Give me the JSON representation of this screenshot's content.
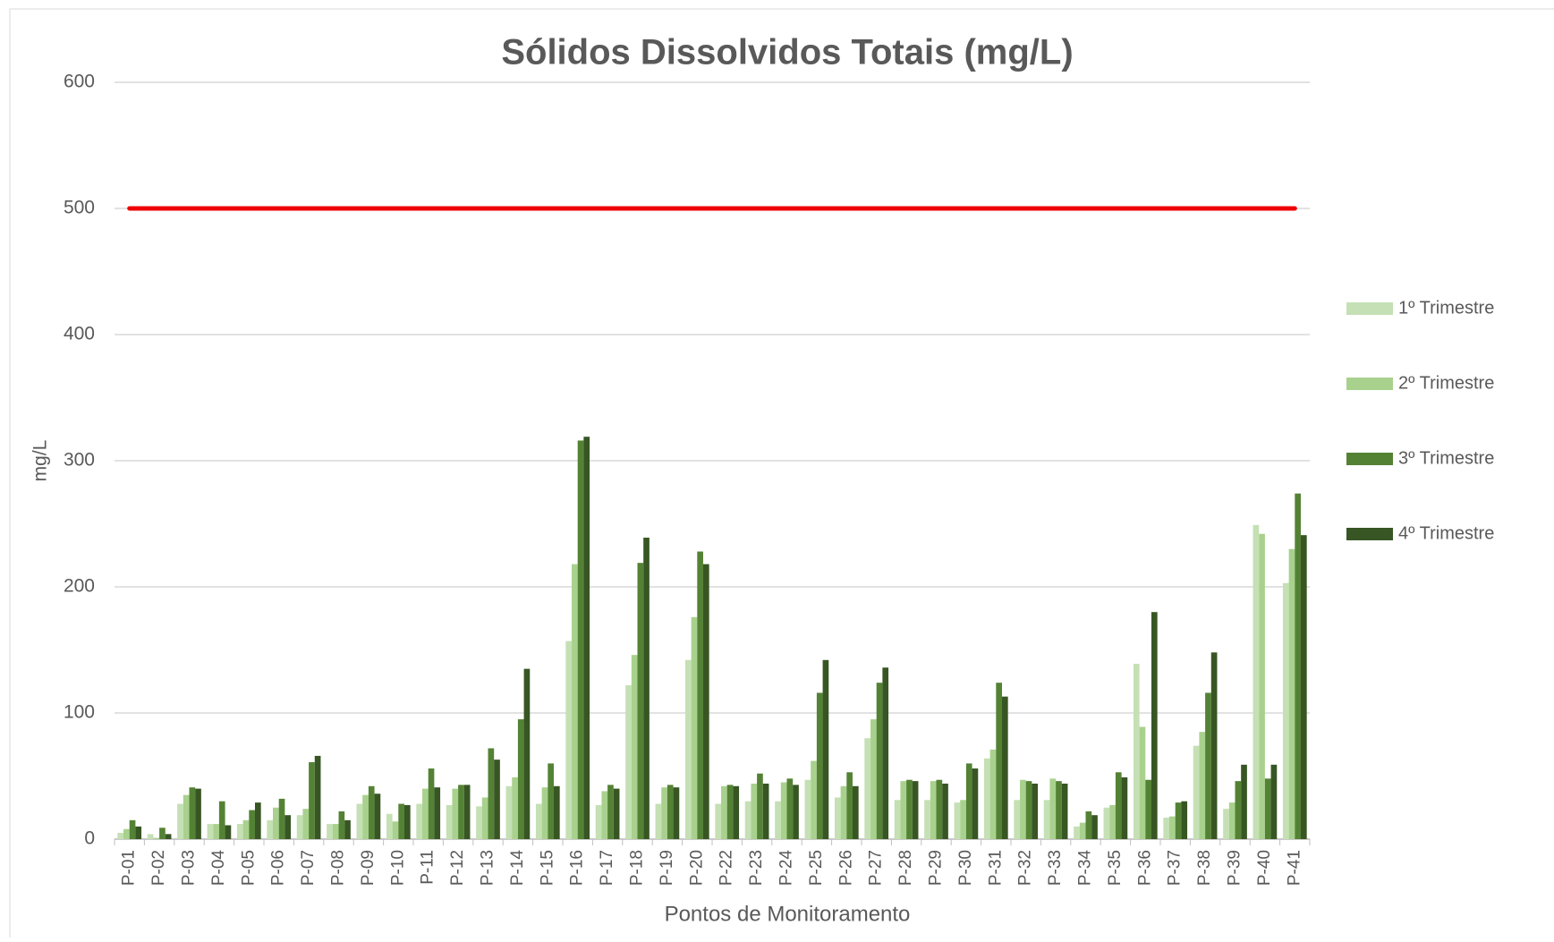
{
  "chart_data": {
    "type": "bar",
    "title": "Sólidos Dissolvidos Totais (mg/L)",
    "x_label": "Pontos de Monitoramento",
    "y_label": "mg/L",
    "categories": [
      "P-01",
      "P-02",
      "P-03",
      "P-04",
      "P-05",
      "P-06",
      "P-07",
      "P-08",
      "P-09",
      "P-10",
      "P-11",
      "P-12",
      "P-13",
      "P-14",
      "P-15",
      "P-16",
      "P-17",
      "P-18",
      "P-19",
      "P-20",
      "P-22",
      "P-23",
      "P-24",
      "P-25",
      "P-26",
      "P-27",
      "P-28",
      "P-29",
      "P-30",
      "P-31",
      "P-32",
      "P-33",
      "P-34",
      "P-35",
      "P-36",
      "P-37",
      "P-38",
      "P-39",
      "P-40",
      "P-41"
    ],
    "series": [
      {
        "name": "1º Trimestre",
        "color": "#c5e0b4",
        "values": [
          5,
          4,
          28,
          12,
          12,
          15,
          19,
          12,
          28,
          20,
          28,
          27,
          26,
          42,
          28,
          157,
          27,
          122,
          28,
          142,
          28,
          30,
          30,
          47,
          33,
          80,
          31,
          31,
          29,
          64,
          31,
          31,
          10,
          25,
          139,
          17,
          74,
          24,
          249,
          203
        ]
      },
      {
        "name": "2º Trimestre",
        "color": "#a9d18e",
        "values": [
          8,
          1,
          35,
          12,
          15,
          25,
          24,
          12,
          35,
          14,
          40,
          40,
          33,
          49,
          41,
          218,
          38,
          146,
          41,
          176,
          42,
          44,
          45,
          62,
          42,
          95,
          46,
          46,
          31,
          71,
          47,
          48,
          13,
          27,
          89,
          18,
          85,
          29,
          242,
          230
        ]
      },
      {
        "name": "3º Trimestre",
        "color": "#548235",
        "values": [
          15,
          9,
          41,
          30,
          23,
          32,
          61,
          22,
          42,
          28,
          56,
          43,
          72,
          95,
          60,
          316,
          43,
          219,
          43,
          228,
          43,
          52,
          48,
          116,
          53,
          124,
          47,
          47,
          60,
          124,
          46,
          46,
          22,
          53,
          47,
          29,
          116,
          46,
          48,
          274
        ]
      },
      {
        "name": "4º Trimestre",
        "color": "#375623",
        "values": [
          10,
          4,
          40,
          11,
          29,
          19,
          66,
          15,
          36,
          27,
          41,
          43,
          63,
          135,
          42,
          319,
          40,
          239,
          41,
          218,
          42,
          44,
          43,
          142,
          42,
          136,
          46,
          44,
          56,
          113,
          44,
          44,
          19,
          49,
          180,
          30,
          148,
          59,
          59,
          241
        ]
      }
    ],
    "reference_line": {
      "value": 500,
      "color": "#ee0000"
    },
    "ylim": [
      0,
      600
    ],
    "yticks": [
      0,
      100,
      200,
      300,
      400,
      500,
      600
    ],
    "grid": true,
    "legend": "right"
  }
}
